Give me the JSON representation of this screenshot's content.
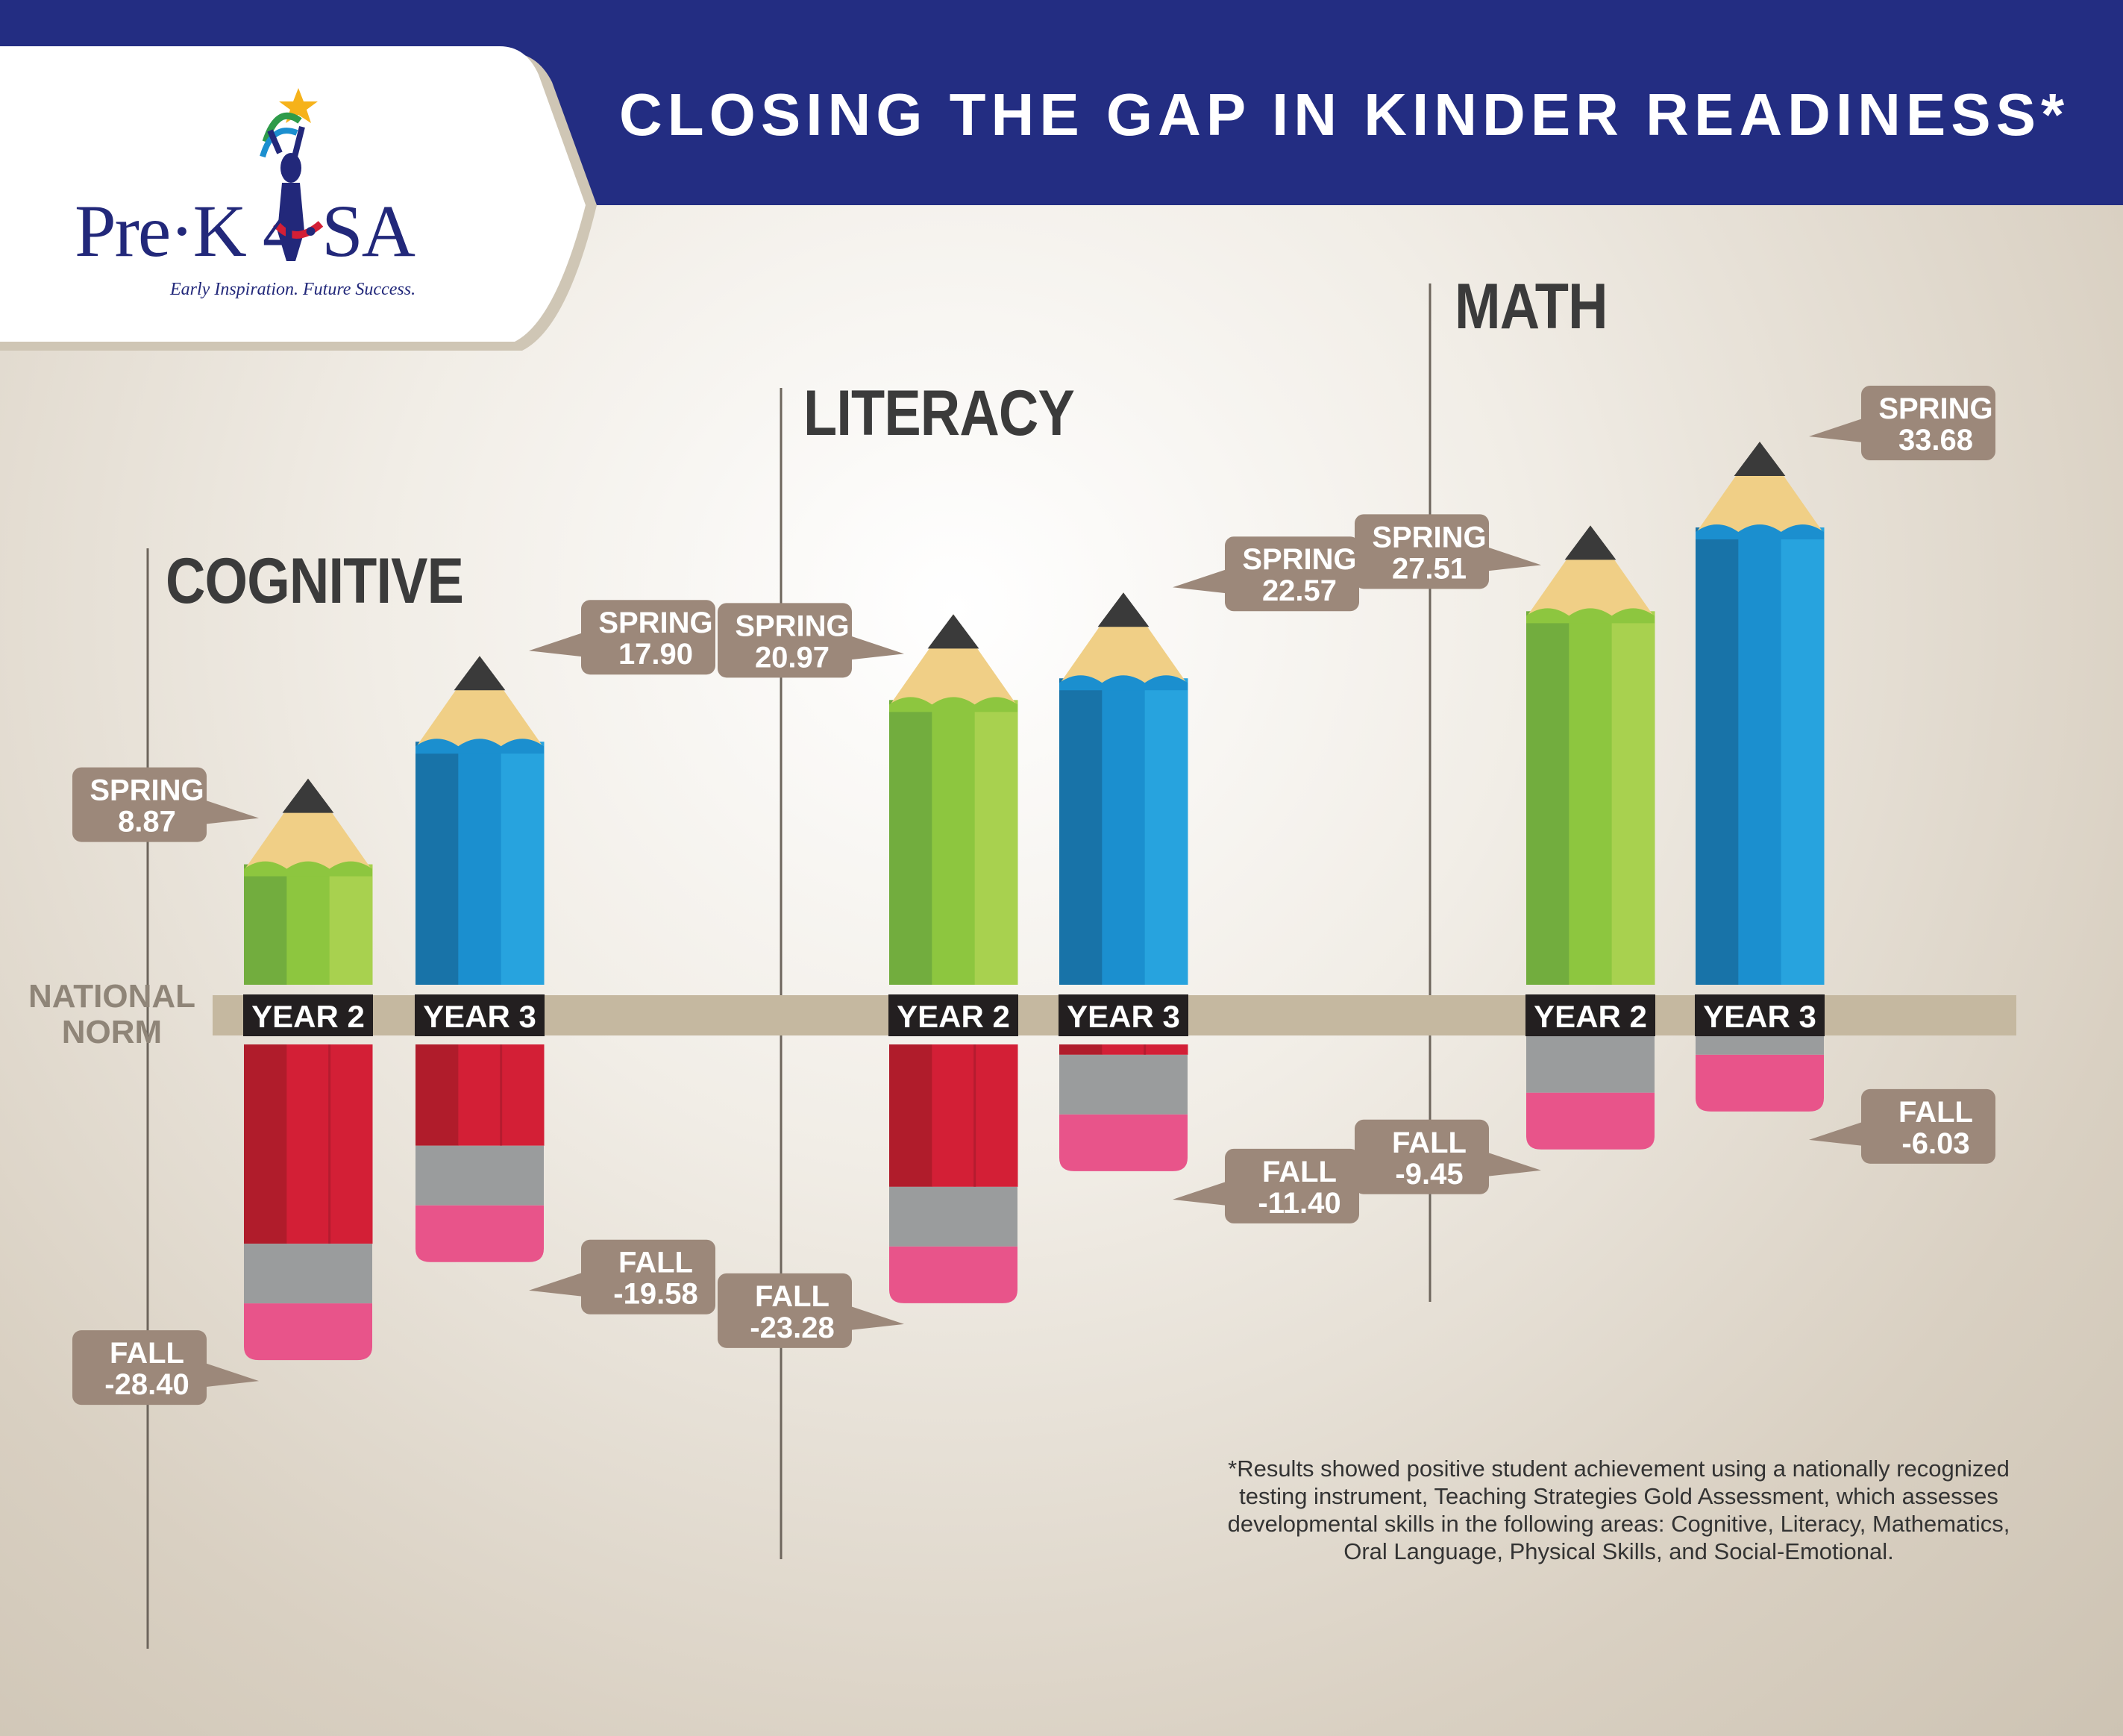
{
  "header": {
    "title": "CLOSING THE GAP IN KINDER READINESS*",
    "logo_text": "Pre·K 4·SA",
    "logo_tagline": "Early Inspiration. Future Success."
  },
  "national_norm_label": "NATIONAL NORM",
  "footnote": "*Results showed positive student achievement using a nationally recognized testing instrument, Teaching Strategies Gold Assessment, which assesses developmental skills in the following areas: Cognitive, Literacy, Mathematics, Oral Language, Physical Skills, and Social-Emotional.",
  "colors": {
    "header_blue": "#232d82",
    "year2_green": "#8dc63f",
    "year3_blue": "#1b8fcf",
    "fall_red": "#d31f36",
    "eraser_pink": "#e8548a",
    "callout_brown": "#9c887a"
  },
  "chart_data": [
    {
      "type": "bar",
      "title": "COGNITIVE",
      "categories": [
        "YEAR 2",
        "YEAR 3"
      ],
      "series": [
        {
          "name": "SPRING",
          "values": [
            8.87,
            17.9
          ]
        },
        {
          "name": "FALL",
          "values": [
            -28.4,
            -19.58
          ]
        }
      ],
      "spring_labels": [
        "8.87",
        "17.90"
      ],
      "fall_labels": [
        "-28.40",
        "-19.58"
      ]
    },
    {
      "type": "bar",
      "title": "LITERACY",
      "categories": [
        "YEAR 2",
        "YEAR 3"
      ],
      "series": [
        {
          "name": "SPRING",
          "values": [
            20.97,
            22.57
          ]
        },
        {
          "name": "FALL",
          "values": [
            -23.28,
            -11.4
          ]
        }
      ],
      "spring_labels": [
        "20.97",
        "22.57"
      ],
      "fall_labels": [
        "-23.28",
        "-11.40"
      ]
    },
    {
      "type": "bar",
      "title": "MATH",
      "categories": [
        "YEAR 2",
        "YEAR 3"
      ],
      "series": [
        {
          "name": "SPRING",
          "values": [
            27.51,
            33.68
          ]
        },
        {
          "name": "FALL",
          "values": [
            -9.45,
            -6.03
          ]
        }
      ],
      "spring_labels": [
        "27.51",
        "33.68"
      ],
      "fall_labels": [
        "-9.45",
        "-6.03"
      ]
    }
  ]
}
